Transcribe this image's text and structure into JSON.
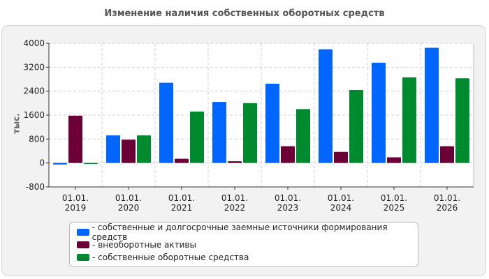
{
  "chart_data": {
    "type": "bar",
    "title": "Изменение наличия собственных оборотных средств",
    "ylabel": "тыс.",
    "xlabel": "",
    "categories": [
      "01.01.\n2019",
      "01.01.\n2020",
      "01.01.\n2021",
      "01.01.\n2022",
      "01.01.\n2023",
      "01.01.\n2024",
      "01.01.\n2025",
      "01.01.\n2026"
    ],
    "ylim": [
      -800,
      4000
    ],
    "yticks": [
      -800,
      0,
      800,
      1600,
      2400,
      3200,
      4000
    ],
    "grid": true,
    "legend_position": "bottom",
    "series": [
      {
        "name": "- собственные и долгосрочные заемные источники формирования средств",
        "color": "#0066ff",
        "values": [
          -50,
          920,
          2680,
          2040,
          2650,
          3800,
          3350,
          3850
        ]
      },
      {
        "name": "- внеоборотные активы",
        "color": "#6a0035",
        "values": [
          1580,
          780,
          140,
          60,
          560,
          370,
          190,
          560
        ]
      },
      {
        "name": "- собственные оборотные средства",
        "color": "#008a30",
        "values": [
          -30,
          920,
          1720,
          2000,
          1800,
          2440,
          2860,
          2830
        ]
      }
    ]
  }
}
